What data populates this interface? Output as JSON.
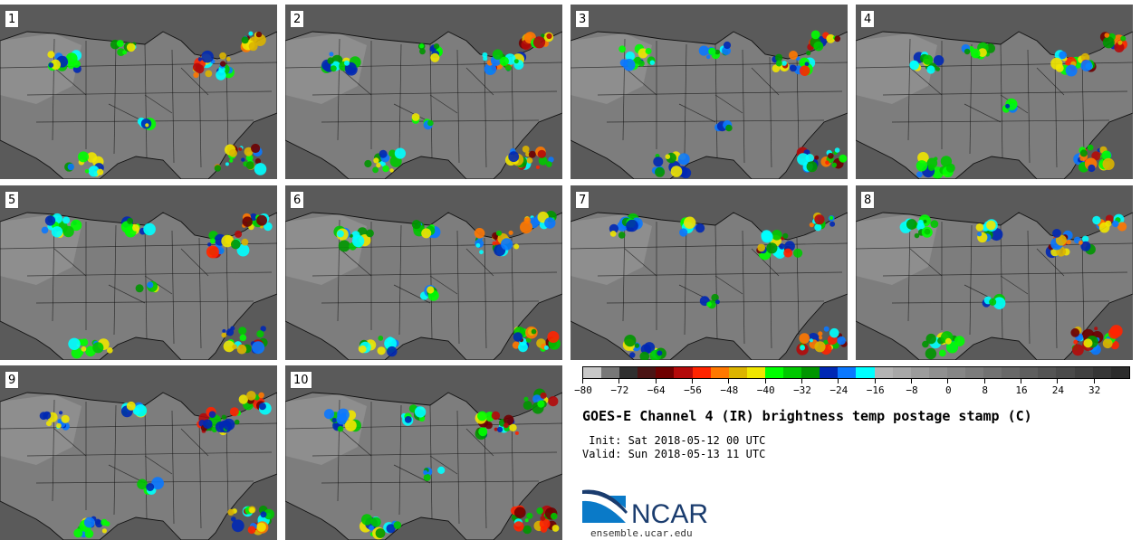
{
  "panels": [
    {
      "label": "1",
      "seed": 11
    },
    {
      "label": "2",
      "seed": 23
    },
    {
      "label": "3",
      "seed": 37
    },
    {
      "label": "4",
      "seed": 41
    },
    {
      "label": "5",
      "seed": 53
    },
    {
      "label": "6",
      "seed": 67
    },
    {
      "label": "7",
      "seed": 71
    },
    {
      "label": "8",
      "seed": 83
    },
    {
      "label": "9",
      "seed": 97
    },
    {
      "label": "10",
      "seed": 103
    }
  ],
  "colorbar": {
    "min": -80,
    "max": 40,
    "step": 4,
    "tick_labels": [
      "-80",
      "-72",
      "-64",
      "-56",
      "-48",
      "-40",
      "-32",
      "-24",
      "-16",
      "-8",
      "0",
      "8",
      "16",
      "24",
      "32"
    ],
    "tick_values": [
      -80,
      -72,
      -64,
      -56,
      -48,
      -40,
      -32,
      -24,
      -16,
      -8,
      0,
      8,
      16,
      24,
      32
    ],
    "colors": [
      "#c8c8c8",
      "#787878",
      "#303030",
      "#4a1414",
      "#6e0000",
      "#b40a0a",
      "#ff2400",
      "#ff7800",
      "#dcb400",
      "#f0e600",
      "#00ff00",
      "#00c800",
      "#009600",
      "#0028b4",
      "#0a78ff",
      "#00ffff",
      "#b4b4b4",
      "#a8a8a8",
      "#9c9c9c",
      "#909090",
      "#868686",
      "#7c7c7c",
      "#727272",
      "#686868",
      "#5e5e5e",
      "#545454",
      "#4a4a4a",
      "#404040",
      "#363636",
      "#2c2c2c"
    ]
  },
  "title": "GOES-E Channel 4 (IR) brightness temp postage stamp (C)",
  "init_line": " Init: Sat 2018-05-12 00 UTC",
  "valid_line": "Valid: Sun 2018-05-13 11 UTC",
  "logo": {
    "text": "NCAR",
    "url": "ensemble.ucar.edu",
    "brand_color": "#1a3c6e",
    "accent_color": "#0a7ac8"
  },
  "map_colors": {
    "land": "#7d7d7d",
    "land_light": "#9a9a9a",
    "water": "#5a5a5a",
    "border": "#111111"
  }
}
